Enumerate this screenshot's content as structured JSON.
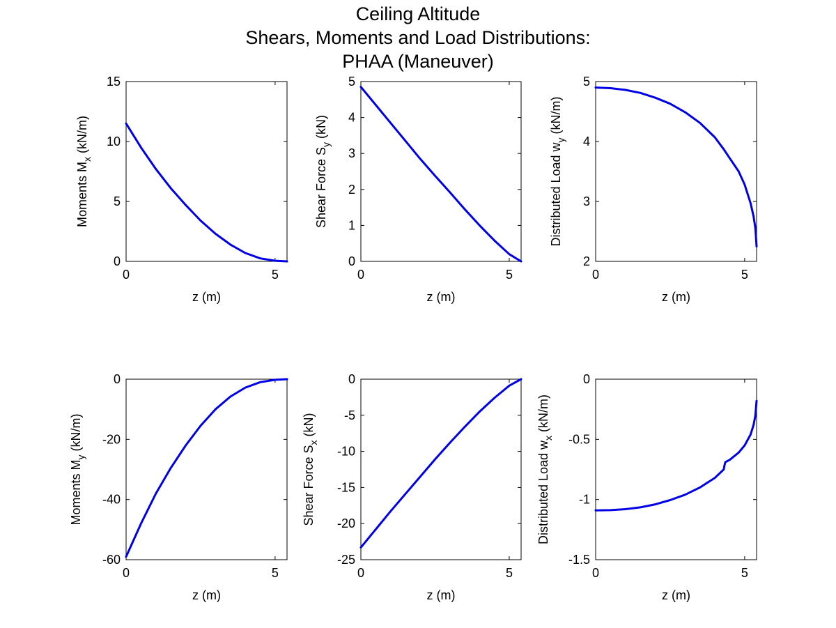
{
  "figure": {
    "title_lines": [
      "Ceiling Altitude",
      "Shears, Moments and Load Distributions:",
      "PHAA (Maneuver)"
    ],
    "line_color": "#0000e6"
  },
  "chart_data": [
    {
      "type": "line",
      "xlabel": "z (m)",
      "ylabel": "Moments M",
      "ylabel_sub": "x",
      "ylabel_unit": "(kN/m)",
      "xlim": [
        0,
        5.4
      ],
      "ylim": [
        0,
        15
      ],
      "xticks": [
        0,
        5
      ],
      "yticks": [
        0,
        5,
        10,
        15
      ],
      "series": [
        {
          "x": [
            0,
            0.5,
            1,
            1.5,
            2,
            2.5,
            3,
            3.5,
            4,
            4.5,
            5,
            5.4
          ],
          "y": [
            11.5,
            9.5,
            7.7,
            6.1,
            4.7,
            3.4,
            2.3,
            1.4,
            0.7,
            0.25,
            0.05,
            0
          ]
        }
      ]
    },
    {
      "type": "line",
      "xlabel": "z (m)",
      "ylabel": "Shear Force S",
      "ylabel_sub": "y",
      "ylabel_unit": "(kN)",
      "xlim": [
        0,
        5.4
      ],
      "ylim": [
        0,
        5
      ],
      "xticks": [
        0,
        5
      ],
      "yticks": [
        0,
        1,
        2,
        3,
        4,
        5
      ],
      "series": [
        {
          "x": [
            0,
            0.5,
            1,
            1.5,
            2,
            2.5,
            3,
            3.5,
            4,
            4.5,
            5,
            5.4
          ],
          "y": [
            4.85,
            4.35,
            3.85,
            3.35,
            2.85,
            2.38,
            1.92,
            1.45,
            1.0,
            0.58,
            0.2,
            0
          ]
        }
      ]
    },
    {
      "type": "line",
      "xlabel": "z (m)",
      "ylabel": "Distributed Load w",
      "ylabel_sub": "y",
      "ylabel_unit": "(kN/m)",
      "xlim": [
        0,
        5.4
      ],
      "ylim": [
        2,
        5
      ],
      "xticks": [
        0,
        5
      ],
      "yticks": [
        2,
        3,
        4,
        5
      ],
      "series": [
        {
          "x": [
            0,
            0.5,
            1,
            1.5,
            2,
            2.5,
            3,
            3.5,
            4,
            4.3,
            4.5,
            4.8,
            5,
            5.2,
            5.3,
            5.36,
            5.4
          ],
          "y": [
            4.9,
            4.89,
            4.86,
            4.81,
            4.73,
            4.63,
            4.49,
            4.31,
            4.07,
            3.87,
            3.72,
            3.5,
            3.28,
            2.97,
            2.75,
            2.55,
            2.25
          ]
        }
      ]
    },
    {
      "type": "line",
      "xlabel": "z (m)",
      "ylabel": "Moments M",
      "ylabel_sub": "y",
      "ylabel_unit": "(kN/m)",
      "xlim": [
        0,
        5.4
      ],
      "ylim": [
        -60,
        0
      ],
      "xticks": [
        0,
        5
      ],
      "yticks": [
        -60,
        -40,
        -20,
        0
      ],
      "series": [
        {
          "x": [
            0,
            0.5,
            1,
            1.5,
            2,
            2.5,
            3,
            3.5,
            4,
            4.5,
            5,
            5.4
          ],
          "y": [
            -59,
            -48,
            -38,
            -29.5,
            -22,
            -15.5,
            -10,
            -5.8,
            -2.8,
            -1,
            -0.2,
            0
          ]
        }
      ]
    },
    {
      "type": "line",
      "xlabel": "z (m)",
      "ylabel": "Shear Force S",
      "ylabel_sub": "x",
      "ylabel_unit": "(kN)",
      "xlim": [
        0,
        5.4
      ],
      "ylim": [
        -25,
        0
      ],
      "xticks": [
        0,
        5
      ],
      "yticks": [
        -25,
        -20,
        -15,
        -10,
        -5,
        0
      ],
      "series": [
        {
          "x": [
            0,
            0.5,
            1,
            1.5,
            2,
            2.5,
            3,
            3.5,
            4,
            4.5,
            5,
            5.4
          ],
          "y": [
            -23.3,
            -20.8,
            -18.3,
            -15.9,
            -13.5,
            -11.1,
            -8.8,
            -6.6,
            -4.5,
            -2.6,
            -0.9,
            0
          ]
        }
      ]
    },
    {
      "type": "line",
      "xlabel": "z (m)",
      "ylabel": "Distributed Load w",
      "ylabel_sub": "x",
      "ylabel_unit": "(kN/m)",
      "xlim": [
        0,
        5.4
      ],
      "ylim": [
        -1.5,
        0
      ],
      "xticks": [
        0,
        5
      ],
      "yticks": [
        -1.5,
        -1,
        -0.5,
        0
      ],
      "series": [
        {
          "x": [
            0,
            0.5,
            1,
            1.5,
            2,
            2.5,
            3,
            3.5,
            4,
            4.3,
            4.32,
            4.35,
            4.5,
            4.8,
            5,
            5.2,
            5.3,
            5.36,
            5.4
          ],
          "y": [
            -1.09,
            -1.088,
            -1.08,
            -1.065,
            -1.04,
            -1.005,
            -0.96,
            -0.9,
            -0.82,
            -0.75,
            -0.72,
            -0.69,
            -0.67,
            -0.61,
            -0.55,
            -0.46,
            -0.38,
            -0.3,
            -0.18
          ]
        }
      ]
    }
  ]
}
